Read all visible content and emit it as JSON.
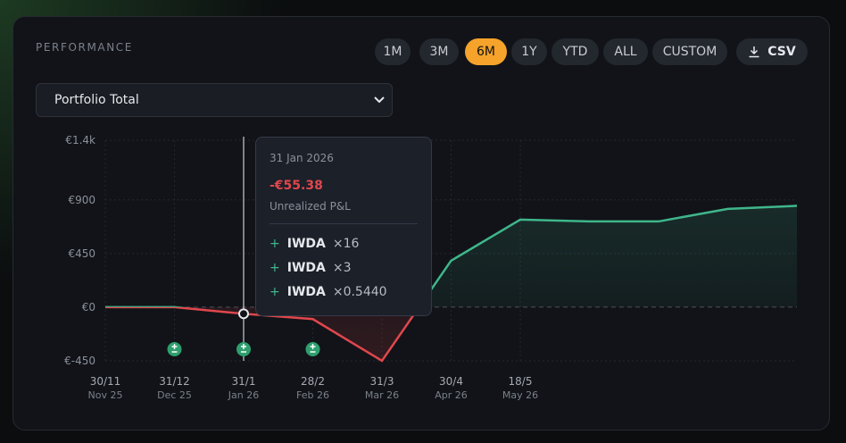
{
  "header": {
    "title": "PERFORMANCE"
  },
  "ranges": [
    {
      "label": "1M",
      "active": false
    },
    {
      "label": "3M",
      "active": false
    },
    {
      "label": "6M",
      "active": true
    },
    {
      "label": "1Y",
      "active": false
    },
    {
      "label": "YTD",
      "active": false
    },
    {
      "label": "ALL",
      "active": false
    },
    {
      "label": "CUSTOM",
      "active": false
    }
  ],
  "export": {
    "label": "CSV"
  },
  "select": {
    "value": "Portfolio Total"
  },
  "chart_data": {
    "type": "line",
    "categories": [
      "30/11",
      "31/12",
      "31/1",
      "28/2",
      "31/3",
      "30/4",
      "18/5",
      null,
      null,
      null,
      null
    ],
    "category_sublabels": [
      "Nov 25",
      "Dec 25",
      "Jan 26",
      "Feb 26",
      "Mar 26",
      "Apr 26",
      "May 26",
      null,
      null,
      null,
      null
    ],
    "values": [
      0,
      0,
      -55.38,
      -100,
      -450,
      390,
      734,
      719,
      719,
      824,
      850
    ],
    "positive_color": "#3fb68b",
    "negative_color": "#e0474c",
    "ylim": [
      -450,
      1400
    ],
    "yticks": [
      {
        "value": -450,
        "label": "€-450"
      },
      {
        "value": 0,
        "label": "€0"
      },
      {
        "value": 450,
        "label": "€450"
      },
      {
        "value": 900,
        "label": "€900"
      },
      {
        "value": 1400,
        "label": "€1.4k"
      }
    ],
    "grid": true
  },
  "tooltip": {
    "date": "31 Jan 2026",
    "value": "-€55.38",
    "label": "Unrealized P&L",
    "trades": [
      {
        "sign": "+",
        "ticker": "IWDA",
        "qty": "×16"
      },
      {
        "sign": "+",
        "ticker": "IWDA",
        "qty": "×3"
      },
      {
        "sign": "+",
        "ticker": "IWDA",
        "qty": "×0.5440"
      }
    ]
  }
}
